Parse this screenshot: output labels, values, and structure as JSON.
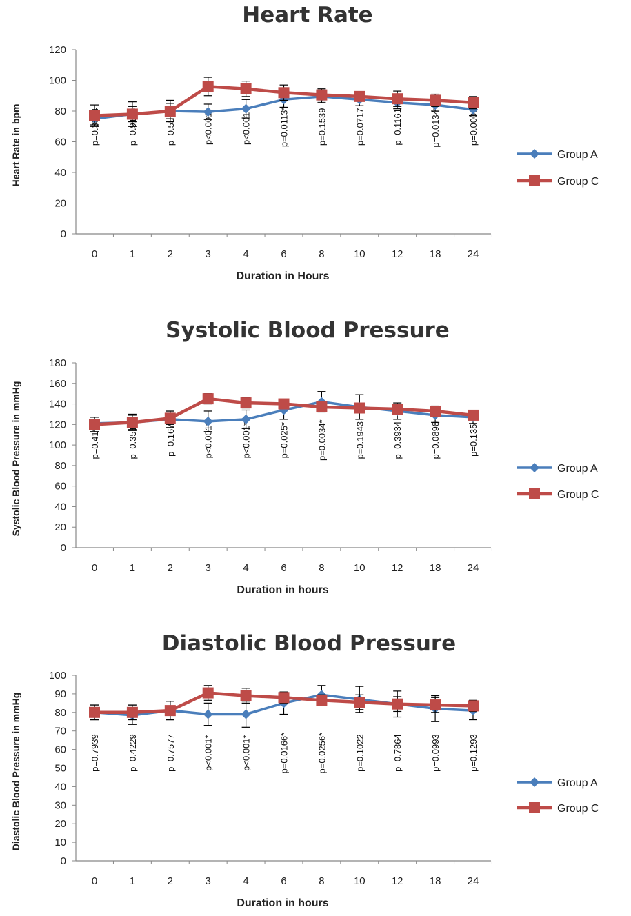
{
  "chart_data": [
    {
      "type": "line",
      "title": "Heart Rate",
      "xlabel": "Duration in Hours",
      "ylabel": "Heart Rate in bpm",
      "categories": [
        "0",
        "1",
        "2",
        "3",
        "4",
        "6",
        "8",
        "10",
        "12",
        "18",
        "24"
      ],
      "yticks": [
        "0",
        "20",
        "40",
        "60",
        "80",
        "100",
        "120"
      ],
      "ylim": [
        0,
        120
      ],
      "legend_position": "right",
      "series": [
        {
          "name": "Group A",
          "color": "#4a7ebb",
          "marker": "diamond",
          "values": [
            75,
            78,
            80,
            79.5,
            81.5,
            87.5,
            89.5,
            87.5,
            85.5,
            84,
            81
          ],
          "errors": [
            4,
            5,
            5,
            5,
            6,
            5,
            4,
            4,
            4,
            4,
            4
          ]
        },
        {
          "name": "Group C",
          "color": "#be4b48",
          "marker": "square",
          "values": [
            77,
            78,
            80,
            96,
            94.5,
            92,
            90.5,
            89.5,
            88,
            87,
            85.5
          ],
          "errors": [
            7,
            8,
            7,
            6,
            5,
            5,
            4,
            3,
            5,
            4,
            4
          ]
        }
      ],
      "annotations": [
        "p=0.3854",
        "p=0.9163",
        "p=0.5513",
        "p<0.001*",
        "p<0.001*",
        "p=0.0113*",
        "p=0.1539",
        "p=0.0717",
        "p=0.1161",
        "p=0.0134*",
        "p=0.0003"
      ]
    },
    {
      "type": "line",
      "title": "Systolic Blood Pressure",
      "xlabel": "Duration in hours",
      "ylabel": "Systolic Blood Pressure in mmHg",
      "categories": [
        "0",
        "1",
        "2",
        "3",
        "4",
        "6",
        "8",
        "10",
        "12",
        "18",
        "24"
      ],
      "yticks": [
        "0",
        "20",
        "40",
        "60",
        "80",
        "100",
        "120",
        "140",
        "160",
        "180"
      ],
      "ylim": [
        0,
        180
      ],
      "legend_position": "right",
      "series": [
        {
          "name": "Group A",
          "color": "#4a7ebb",
          "marker": "diamond",
          "values": [
            121,
            122,
            125,
            123,
            125,
            134,
            142,
            137,
            133,
            129,
            127
          ],
          "errors": [
            6,
            7,
            8,
            10,
            9,
            9,
            10,
            12,
            8,
            7,
            6
          ]
        },
        {
          "name": "Group C",
          "color": "#be4b48",
          "marker": "square",
          "values": [
            120,
            122,
            126,
            145,
            141,
            140,
            137,
            136,
            135,
            133,
            129
          ],
          "errors": [
            7,
            8,
            6,
            5,
            5,
            4,
            4,
            4,
            5,
            5,
            4
          ]
        }
      ],
      "annotations": [
        "p=0.4195",
        "p=0.3517",
        "p=0.167",
        "p<0.001*",
        "p<0.001*",
        "p=0.025*",
        "p=0.0034*",
        "p=0.1943",
        "p=0.3934",
        "p=0.0898",
        "p=0.135"
      ]
    },
    {
      "type": "line",
      "title": "Diastolic Blood Pressure",
      "xlabel": "Duration in hours",
      "ylabel": "Diastolic Blood Pressure in mmHg",
      "categories": [
        "0",
        "1",
        "2",
        "3",
        "4",
        "6",
        "8",
        "10",
        "12",
        "18",
        "24"
      ],
      "yticks": [
        "0",
        "10",
        "20",
        "30",
        "40",
        "50",
        "60",
        "70",
        "80",
        "90",
        "100"
      ],
      "ylim": [
        0,
        100
      ],
      "legend_position": "right",
      "series": [
        {
          "name": "Group A",
          "color": "#4a7ebb",
          "marker": "diamond",
          "values": [
            80,
            78.5,
            81,
            79,
            79,
            85,
            89.5,
            87,
            84.5,
            82,
            81
          ],
          "errors": [
            4,
            5,
            5,
            6,
            7,
            6,
            5,
            7,
            7,
            7,
            5
          ]
        },
        {
          "name": "Group C",
          "color": "#be4b48",
          "marker": "square",
          "values": [
            80,
            80,
            81,
            90.5,
            89,
            88,
            86.5,
            85.5,
            84.5,
            84,
            83.5
          ],
          "errors": [
            4,
            4,
            5,
            4,
            4,
            3,
            3,
            4,
            4,
            4,
            3
          ]
        }
      ],
      "annotations": [
        "p=0.7939",
        "p=0.4229",
        "p=0.7577",
        "p<0.001*",
        "p<0.001*",
        "p=0.0166*",
        "p=0.0256*",
        "p=0.1022",
        "p=0.7864",
        "p=0.0993",
        "p=0.1293"
      ]
    }
  ]
}
